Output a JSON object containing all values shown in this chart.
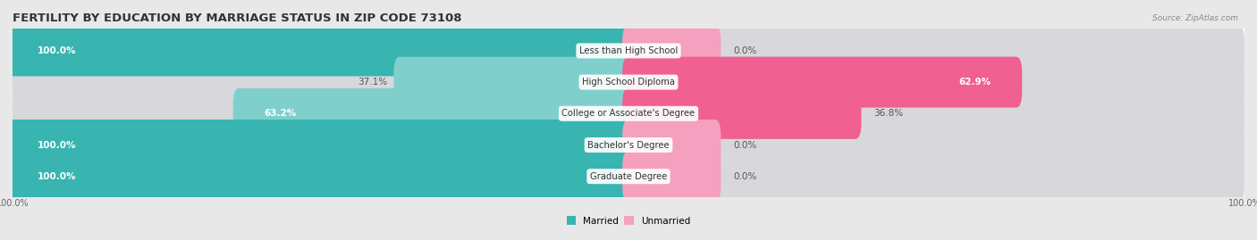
{
  "title": "FERTILITY BY EDUCATION BY MARRIAGE STATUS IN ZIP CODE 73108",
  "source": "Source: ZipAtlas.com",
  "categories": [
    "Less than High School",
    "High School Diploma",
    "College or Associate's Degree",
    "Bachelor's Degree",
    "Graduate Degree"
  ],
  "married": [
    100.0,
    37.1,
    63.2,
    100.0,
    100.0
  ],
  "unmarried": [
    0.0,
    62.9,
    36.8,
    0.0,
    0.0
  ],
  "married_color": "#38b5b0",
  "married_color_light": "#7fd0cc",
  "unmarried_color": "#f06090",
  "unmarried_color_light": "#f5a0bf",
  "bg_color": "#e8e8e8",
  "track_color": "#d8d8dc",
  "title_fontsize": 9.5,
  "label_fontsize": 7.5,
  "axis_label_fontsize": 7,
  "legend_fontsize": 7.5,
  "x_left_label": "100.0%",
  "x_right_label": "100.0%"
}
